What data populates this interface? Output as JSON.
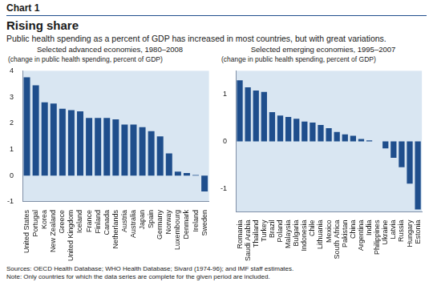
{
  "header": {
    "label": "Chart 1",
    "title": "Rising share",
    "subtitle": "Public health spending as a percent of GDP has increased in most countries, but with great variations."
  },
  "chart_data": [
    {
      "type": "bar",
      "title": "Selected advanced economies, 1980–2008",
      "ylabel": "(change in public health spending, percent of GDP)",
      "categories": [
        "United States",
        "Portugal",
        "Korea",
        "New Zealand",
        "Greece",
        "United Kingdom",
        "Iceland",
        "France",
        "Finland",
        "Canada",
        "Netherlands",
        "Austria",
        "Australia",
        "Japan",
        "Spain",
        "Germany",
        "Norway",
        "Luxembourg",
        "Denmark",
        "Ireland",
        "Sweden"
      ],
      "values": [
        3.75,
        3.45,
        2.8,
        2.75,
        2.55,
        2.5,
        2.45,
        2.2,
        2.2,
        2.2,
        2.15,
        1.95,
        1.95,
        1.85,
        1.7,
        1.5,
        0.85,
        0.15,
        0.1,
        0.02,
        -0.6
      ],
      "color": "#1f4e8c",
      "ylim": [
        -1,
        4
      ],
      "yticks": [
        -1,
        0,
        1,
        2,
        3,
        4
      ],
      "grid": false
    },
    {
      "type": "bar",
      "title": "Selected emerging economies, 1995–2007",
      "ylabel": "(change in public health spending, percent of GDP)",
      "categories": [
        "Romania",
        "Saudi Arabia",
        "Thailand",
        "Turkey",
        "Brazil",
        "Poland",
        "Malaysia",
        "Bulgaria",
        "Indonesia",
        "Chile",
        "Lithuania",
        "Mexico",
        "South Africa",
        "Pakistan",
        "China",
        "Argentina",
        "India",
        "Philippines",
        "Ukraine",
        "Latvia",
        "Russia",
        "Hungary",
        "Estonia"
      ],
      "values": [
        1.3,
        1.15,
        1.08,
        1.05,
        0.62,
        0.55,
        0.52,
        0.48,
        0.42,
        0.4,
        0.35,
        0.28,
        0.2,
        0.15,
        0.12,
        0.05,
        0.02,
        0.0,
        -0.15,
        -0.35,
        -0.55,
        -0.9,
        -1.45
      ],
      "color": "#1f4e8c",
      "ylim": [
        -1.5,
        1.5
      ],
      "yticks": [
        -1,
        0,
        1
      ],
      "grid": false
    }
  ],
  "footer": {
    "sources": "Sources: OECD Health Database; WHO Health Database; Sivard (1974-96); and IMF staff estimates.",
    "note": "Note: Only countries for which the data series are complete for the given period are included."
  }
}
